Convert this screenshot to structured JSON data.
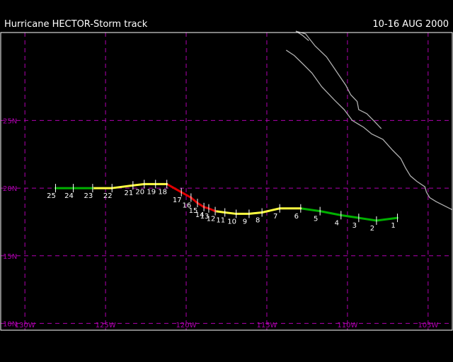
{
  "header": {
    "title": "Hurricane HECTOR-Storm track",
    "date_range": "10-16 AUG 2000"
  },
  "colors": {
    "background": "#000000",
    "frame": "#ffffff",
    "grid": "#b000b0",
    "coast": "#b0b0b0",
    "track": {
      "tropical-depression": "#00b000",
      "tropical-storm": "#ffff40",
      "hurricane": "#e00000"
    }
  },
  "map": {
    "lon_range": [
      -131.5,
      -103.5
    ],
    "lat_range": [
      9.5,
      31.5
    ],
    "lon_grid": [
      -130,
      -125,
      -120,
      -115,
      -110,
      -105
    ],
    "lat_grid": [
      10,
      15,
      20,
      25
    ],
    "lon_labels": [
      "130W",
      "125W",
      "120W",
      "115W",
      "110W",
      "105W"
    ],
    "lat_labels": [
      "10N",
      "15N",
      "20N",
      "25N"
    ]
  },
  "coastlines": [
    [
      [
        -113.8,
        30.2
      ],
      [
        -113.3,
        29.8
      ],
      [
        -112.7,
        29.1
      ],
      [
        -112.2,
        28.5
      ],
      [
        -111.6,
        27.5
      ],
      [
        -110.8,
        26.5
      ],
      [
        -110.2,
        25.8
      ],
      [
        -109.7,
        25.0
      ],
      [
        -109.0,
        24.5
      ],
      [
        -108.5,
        24.0
      ],
      [
        -107.8,
        23.6
      ],
      [
        -107.2,
        22.8
      ],
      [
        -106.7,
        22.2
      ],
      [
        -106.4,
        21.5
      ],
      [
        -106.1,
        20.9
      ],
      [
        -105.7,
        20.5
      ],
      [
        -105.2,
        20.1
      ],
      [
        -105.1,
        19.7
      ],
      [
        -104.9,
        19.3
      ],
      [
        -104.5,
        19.0
      ],
      [
        -104.0,
        18.7
      ],
      [
        -103.5,
        18.4
      ]
    ],
    [
      [
        -112.4,
        30.9
      ],
      [
        -112.8,
        31.3
      ],
      [
        -113.2,
        31.6
      ],
      [
        -112.6,
        31.4
      ],
      [
        -112.0,
        30.5
      ],
      [
        -111.3,
        29.7
      ],
      [
        -110.9,
        29.0
      ],
      [
        -110.5,
        28.3
      ],
      [
        -110.1,
        27.6
      ],
      [
        -109.8,
        26.9
      ],
      [
        -109.4,
        26.4
      ],
      [
        -109.3,
        25.8
      ],
      [
        -108.8,
        25.5
      ],
      [
        -108.3,
        24.9
      ],
      [
        -107.9,
        24.4
      ]
    ]
  ],
  "track": [
    {
      "label": "1",
      "lon": -106.9,
      "lat": 17.8,
      "status": "tropical-depression"
    },
    {
      "label": "2",
      "lon": -108.2,
      "lat": 17.6,
      "status": "tropical-depression"
    },
    {
      "label": "3",
      "lon": -109.3,
      "lat": 17.8,
      "status": "tropical-depression"
    },
    {
      "label": "4",
      "lon": -110.4,
      "lat": 18.0,
      "status": "tropical-depression"
    },
    {
      "label": "5",
      "lon": -111.7,
      "lat": 18.3,
      "status": "tropical-depression"
    },
    {
      "label": "6",
      "lon": -112.9,
      "lat": 18.5,
      "status": "tropical-storm"
    },
    {
      "label": "7",
      "lon": -114.2,
      "lat": 18.5,
      "status": "tropical-storm"
    },
    {
      "label": "8",
      "lon": -115.3,
      "lat": 18.2,
      "status": "tropical-storm"
    },
    {
      "label": "9",
      "lon": -116.1,
      "lat": 18.1,
      "status": "tropical-storm"
    },
    {
      "label": "10",
      "lon": -116.9,
      "lat": 18.1,
      "status": "tropical-storm"
    },
    {
      "label": "11",
      "lon": -117.6,
      "lat": 18.2,
      "status": "tropical-storm"
    },
    {
      "label": "12",
      "lon": -118.2,
      "lat": 18.3,
      "status": "hurricane"
    },
    {
      "label": "13",
      "lon": -118.6,
      "lat": 18.5,
      "status": "hurricane"
    },
    {
      "label": "14",
      "lon": -118.9,
      "lat": 18.6,
      "status": "hurricane"
    },
    {
      "label": "15",
      "lon": -119.3,
      "lat": 18.9,
      "status": "hurricane"
    },
    {
      "label": "16",
      "lon": -119.7,
      "lat": 19.3,
      "status": "hurricane"
    },
    {
      "label": "17",
      "lon": -120.3,
      "lat": 19.7,
      "status": "hurricane"
    },
    {
      "label": "18",
      "lon": -121.2,
      "lat": 20.3,
      "status": "tropical-storm"
    },
    {
      "label": "19",
      "lon": -121.9,
      "lat": 20.3,
      "status": "tropical-storm"
    },
    {
      "label": "20",
      "lon": -122.6,
      "lat": 20.3,
      "status": "tropical-storm"
    },
    {
      "label": "21",
      "lon": -123.3,
      "lat": 20.2,
      "status": "tropical-storm"
    },
    {
      "label": "22",
      "lon": -124.6,
      "lat": 20.0,
      "status": "tropical-storm"
    },
    {
      "label": "23",
      "lon": -125.8,
      "lat": 20.0,
      "status": "tropical-depression"
    },
    {
      "label": "24",
      "lon": -127.0,
      "lat": 20.0,
      "status": "tropical-depression"
    },
    {
      "label": "25",
      "lon": -128.1,
      "lat": 20.0,
      "status": "tropical-depression"
    }
  ]
}
